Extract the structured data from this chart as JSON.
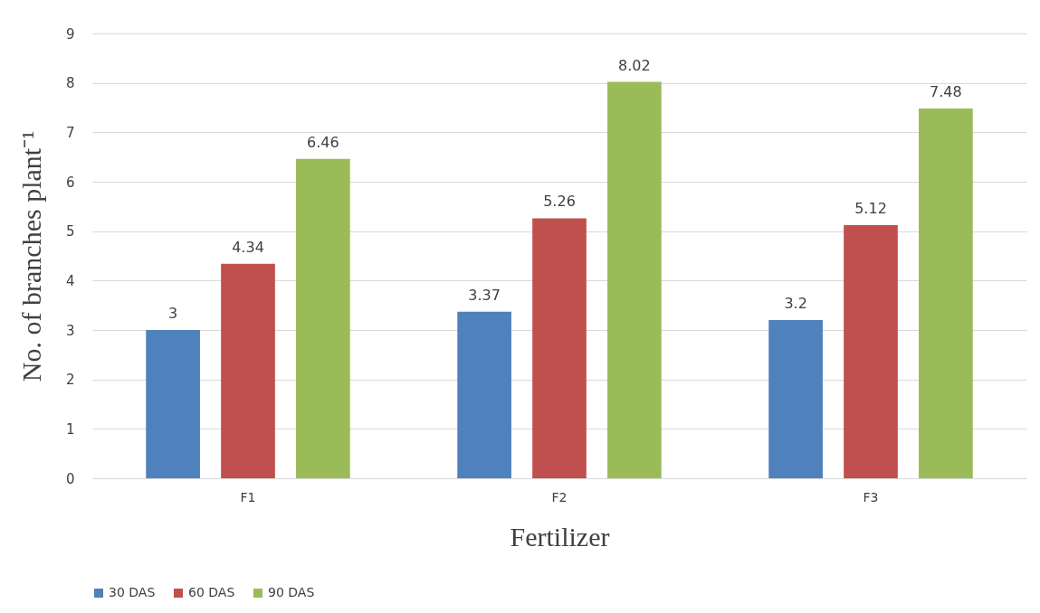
{
  "chart_data": {
    "type": "bar",
    "xlabel": "Fertilizer",
    "ylabel": "No. of  branches plant⁻¹",
    "categories": [
      "F1",
      "F2",
      "F3"
    ],
    "series": [
      {
        "name": "30 DAS",
        "color": "#4f81bd",
        "values": [
          3,
          3.37,
          3.2
        ]
      },
      {
        "name": "60 DAS",
        "color": "#c0504d",
        "values": [
          4.34,
          5.26,
          5.12
        ]
      },
      {
        "name": "90 DAS",
        "color": "#9bbb59",
        "values": [
          6.46,
          8.02,
          7.48
        ]
      }
    ],
    "ylim": [
      0,
      9
    ],
    "yticks": [
      0,
      1,
      2,
      3,
      4,
      5,
      6,
      7,
      8,
      9
    ],
    "grid": "y",
    "legend": "bottom",
    "data_labels": true
  }
}
